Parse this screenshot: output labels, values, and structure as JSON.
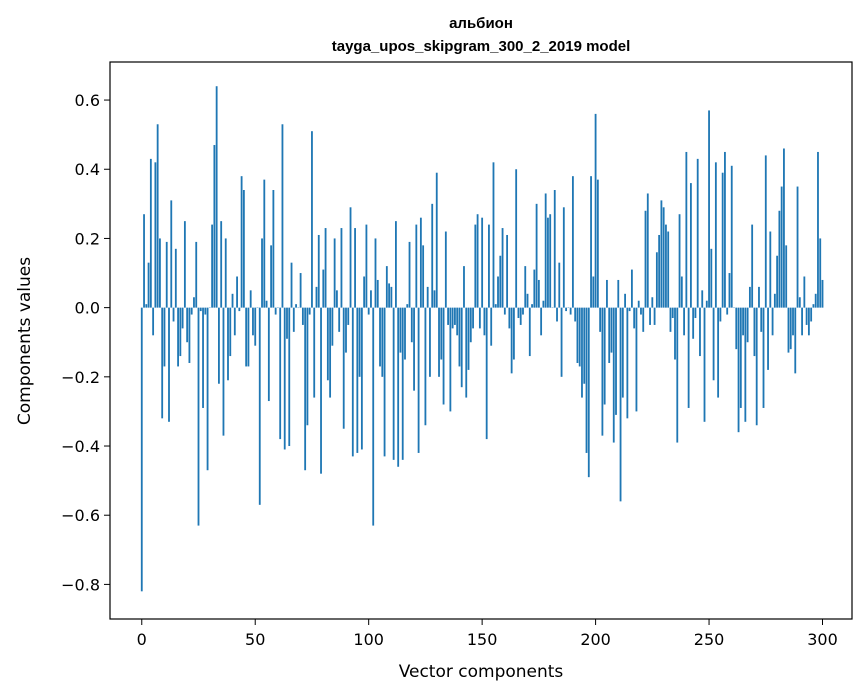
{
  "chart_data": {
    "type": "bar",
    "title_line1": "альбион",
    "title_line2": "tayga_upos_skipgram_300_2_2019 model",
    "xlabel": "Vector components",
    "ylabel": "Components values",
    "xlim": [
      -14,
      313
    ],
    "ylim": [
      -0.9,
      0.71
    ],
    "xticks": [
      0,
      50,
      100,
      150,
      200,
      250,
      300
    ],
    "yticks": [
      -0.8,
      -0.6,
      -0.4,
      -0.2,
      0.0,
      0.2,
      0.4,
      0.6
    ],
    "ytick_labels": [
      "−0.8",
      "−0.6",
      "−0.4",
      "−0.2",
      "0.0",
      "0.2",
      "0.4",
      "0.6"
    ],
    "bar_color": "#1f77b4",
    "values": [
      -0.82,
      0.27,
      0.01,
      0.13,
      0.43,
      -0.08,
      0.42,
      0.53,
      0.2,
      -0.32,
      -0.17,
      0.19,
      -0.33,
      0.31,
      -0.04,
      0.17,
      -0.17,
      -0.14,
      -0.06,
      0.25,
      -0.1,
      -0.16,
      -0.02,
      0.03,
      0.19,
      -0.63,
      -0.01,
      -0.29,
      -0.02,
      -0.47,
      0.0,
      0.24,
      0.47,
      0.64,
      -0.22,
      0.25,
      -0.37,
      0.2,
      -0.21,
      -0.14,
      0.04,
      -0.08,
      0.09,
      -0.01,
      0.38,
      0.34,
      -0.17,
      -0.17,
      0.05,
      -0.08,
      -0.11,
      0.0,
      -0.57,
      0.2,
      0.37,
      0.02,
      -0.27,
      0.18,
      0.34,
      -0.02,
      0.0,
      -0.38,
      0.53,
      -0.41,
      -0.09,
      -0.4,
      0.13,
      -0.07,
      0.01,
      0.0,
      0.1,
      -0.05,
      -0.47,
      -0.34,
      -0.02,
      0.51,
      -0.26,
      0.06,
      0.21,
      -0.48,
      0.11,
      0.23,
      -0.21,
      -0.26,
      -0.11,
      0.2,
      0.05,
      -0.07,
      0.23,
      -0.35,
      -0.13,
      -0.05,
      0.29,
      -0.43,
      0.23,
      -0.42,
      -0.2,
      -0.41,
      0.09,
      0.24,
      -0.02,
      0.05,
      -0.63,
      0.2,
      0.08,
      -0.17,
      -0.2,
      -0.43,
      0.12,
      0.07,
      0.06,
      -0.44,
      0.25,
      -0.46,
      -0.13,
      -0.44,
      -0.15,
      0.01,
      0.19,
      -0.1,
      -0.24,
      0.24,
      -0.42,
      0.26,
      0.18,
      -0.34,
      0.06,
      -0.2,
      0.3,
      0.05,
      0.39,
      -0.2,
      -0.15,
      -0.28,
      0.22,
      -0.05,
      -0.3,
      -0.06,
      -0.05,
      -0.08,
      -0.17,
      -0.23,
      0.12,
      -0.26,
      -0.18,
      -0.1,
      -0.06,
      0.24,
      0.27,
      -0.06,
      0.26,
      -0.08,
      -0.38,
      0.24,
      -0.11,
      0.42,
      0.01,
      0.09,
      0.15,
      0.23,
      -0.02,
      0.21,
      -0.06,
      -0.19,
      -0.15,
      0.4,
      -0.03,
      -0.05,
      -0.02,
      0.12,
      0.04,
      -0.14,
      0.01,
      0.11,
      0.3,
      0.08,
      -0.08,
      0.02,
      0.33,
      0.26,
      0.27,
      0.0,
      0.34,
      -0.04,
      0.13,
      -0.2,
      0.29,
      -0.01,
      0.0,
      -0.02,
      0.38,
      -0.04,
      -0.16,
      -0.17,
      -0.26,
      -0.22,
      -0.42,
      -0.49,
      0.38,
      0.09,
      0.56,
      0.37,
      -0.07,
      -0.37,
      -0.28,
      0.08,
      -0.16,
      -0.13,
      -0.39,
      -0.31,
      0.08,
      -0.56,
      -0.26,
      0.04,
      -0.32,
      -0.01,
      0.11,
      -0.06,
      -0.3,
      0.02,
      -0.02,
      -0.07,
      0.28,
      0.33,
      -0.05,
      0.03,
      -0.05,
      0.16,
      0.21,
      0.31,
      0.29,
      0.24,
      0.22,
      -0.07,
      -0.03,
      -0.15,
      -0.39,
      0.27,
      0.09,
      -0.08,
      0.45,
      -0.29,
      0.36,
      -0.09,
      -0.03,
      0.43,
      -0.14,
      0.05,
      -0.33,
      0.02,
      0.57,
      0.17,
      -0.21,
      0.42,
      -0.26,
      -0.04,
      0.39,
      0.45,
      -0.02,
      0.1,
      0.41,
      0.0,
      -0.12,
      -0.36,
      -0.29,
      -0.08,
      -0.33,
      -0.1,
      0.06,
      0.24,
      -0.14,
      -0.34,
      0.06,
      -0.07,
      -0.29,
      0.44,
      -0.18,
      0.22,
      -0.08,
      0.04,
      0.15,
      0.28,
      0.35,
      0.46,
      0.18,
      -0.13,
      -0.12,
      -0.08,
      -0.19,
      0.35,
      0.03,
      -0.08,
      0.09,
      -0.05,
      -0.08,
      -0.04,
      0.01,
      0.04,
      0.45,
      0.2,
      0.08
    ]
  }
}
